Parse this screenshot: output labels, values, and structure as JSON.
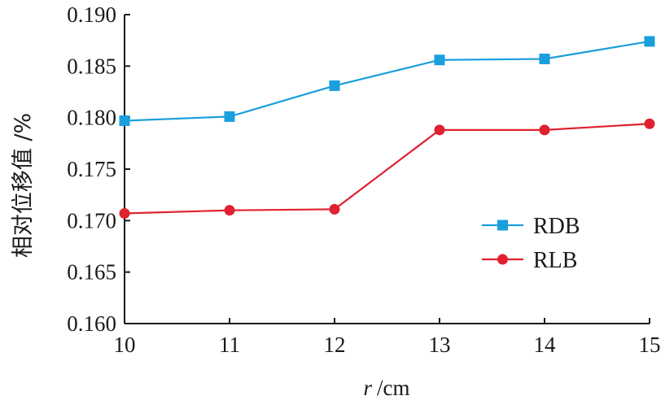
{
  "chart_data": {
    "type": "line",
    "title": "",
    "xlabel": "r /cm",
    "xlabel_var": "r",
    "xlabel_unit": "/cm",
    "ylabel": "相对位移值 /%",
    "x": [
      10,
      11,
      12,
      13,
      14,
      15
    ],
    "x_ticks": [
      "10",
      "11",
      "12",
      "13",
      "14",
      "15"
    ],
    "xlim": [
      10,
      15
    ],
    "y_ticks": [
      "0.160",
      "0.165",
      "0.170",
      "0.175",
      "0.180",
      "0.185",
      "0.190"
    ],
    "ylim": [
      0.16,
      0.19
    ],
    "grid": false,
    "legend_position": "bottom-right",
    "series": [
      {
        "name": "RDB",
        "color": "#1a9fdc",
        "marker": "square",
        "values": [
          0.1797,
          0.1801,
          0.1831,
          0.1856,
          0.1857,
          0.1874
        ]
      },
      {
        "name": "RLB",
        "color": "#e0212f",
        "marker": "circle",
        "values": [
          0.1707,
          0.171,
          0.1711,
          0.1788,
          0.1788,
          0.1794
        ]
      }
    ]
  }
}
